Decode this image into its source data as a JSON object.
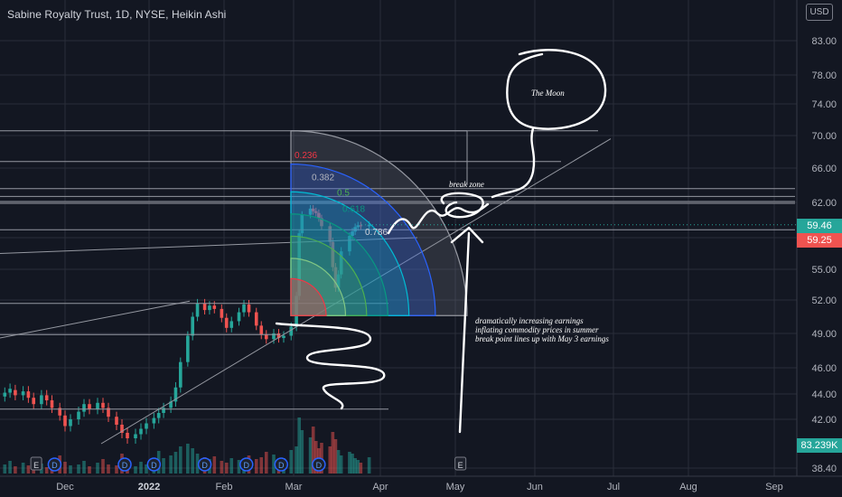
{
  "header": {
    "title": "Sabine Royalty Trust, 1D, NYSE, Heikin Ashi",
    "currency": "USD"
  },
  "colors": {
    "background": "#131722",
    "up": "#26a69a",
    "down": "#ef5350",
    "grid": "#2a2e39",
    "axis_text": "#b2b5be"
  },
  "chart_data": {
    "type": "candlestick",
    "series_name": "Sabine Royalty Trust",
    "y_ticks": [
      38.4,
      42.0,
      44.0,
      46.0,
      49.0,
      52.0,
      55.0,
      58.0,
      62.0,
      66.0,
      70.0,
      74.0,
      78.0,
      83.0
    ],
    "y_tick_labels": [
      "38.40",
      "42.00",
      "44.00",
      "46.00",
      "49.00",
      "52.00",
      "55.00",
      "58.00",
      "62.00",
      "66.00",
      "70.00",
      "74.00",
      "78.00",
      "83.00"
    ],
    "x_labels": [
      "Dec",
      "2022",
      "Feb",
      "Mar",
      "Apr",
      "May",
      "Jun",
      "Jul",
      "Aug",
      "Sep"
    ],
    "last_price": "59.46",
    "prev_close": "59.25",
    "volume_label": "83.239K",
    "fib_levels": [
      "0.236",
      "0.382",
      "0.5",
      "0.618",
      "0.786"
    ],
    "event_markers": [
      {
        "x": "Nov 20",
        "type": "E"
      },
      {
        "x": "Nov 27",
        "type": "D"
      },
      {
        "x": "Dec 23",
        "type": "D"
      },
      {
        "x": "Jan 3",
        "type": "D"
      },
      {
        "x": "Jan 24",
        "type": "D"
      },
      {
        "x": "Feb 10",
        "type": "D"
      },
      {
        "x": "Feb 24",
        "type": "D"
      },
      {
        "x": "Mar 10",
        "type": "D"
      },
      {
        "x": "May 3",
        "type": "E"
      }
    ]
  },
  "annotations": {
    "moon": "The Moon",
    "break_zone": "break zone",
    "notes": [
      "dramatically increasing earnings",
      "inflating commodity prices in summer",
      "break point lines up with May 3 earnings"
    ]
  }
}
